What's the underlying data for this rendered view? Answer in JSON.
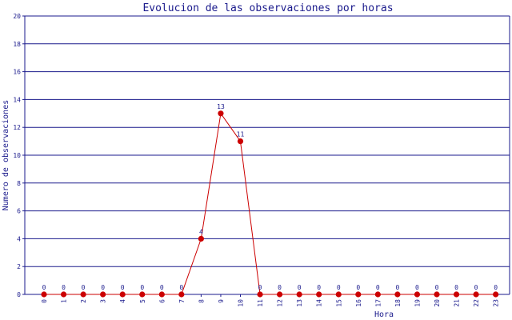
{
  "colors": {
    "grid": "#1a1a8c",
    "axis": "#1a1a8c",
    "text": "#1a1a8c",
    "line": "#cc0000",
    "marker": "#cc0000"
  },
  "chart_data": {
    "type": "line",
    "title": "Evolucion de las observaciones por horas",
    "xlabel": "Hora",
    "ylabel": "Numero de observaciones",
    "categories": [
      "0",
      "1",
      "2",
      "3",
      "4",
      "5",
      "6",
      "7",
      "8",
      "9",
      "10",
      "11",
      "12",
      "13",
      "14",
      "15",
      "16",
      "17",
      "18",
      "19",
      "20",
      "21",
      "22",
      "23"
    ],
    "series": [
      {
        "values": [
          0,
          0,
          0,
          0,
          0,
          0,
          0,
          0,
          4,
          13,
          11,
          0,
          0,
          0,
          0,
          0,
          0,
          0,
          0,
          0,
          0,
          0,
          0,
          0
        ],
        "data_labels": [
          "0",
          "0",
          "0",
          "0",
          "0",
          "0",
          "0",
          "0",
          "4",
          "13",
          "11",
          "0",
          "0",
          "0",
          "0",
          "0",
          "0",
          "0",
          "0",
          "0",
          "0",
          "0",
          "0",
          "0"
        ]
      }
    ],
    "ylim": [
      0,
      20
    ],
    "yticks": [
      0,
      2,
      4,
      6,
      8,
      10,
      12,
      14,
      16,
      18,
      20
    ],
    "ytick_labels": [
      "0",
      "2",
      "4",
      "6",
      "8",
      "10",
      "12",
      "14",
      "16",
      "18",
      "20"
    ],
    "grid": true,
    "legend": "none"
  }
}
